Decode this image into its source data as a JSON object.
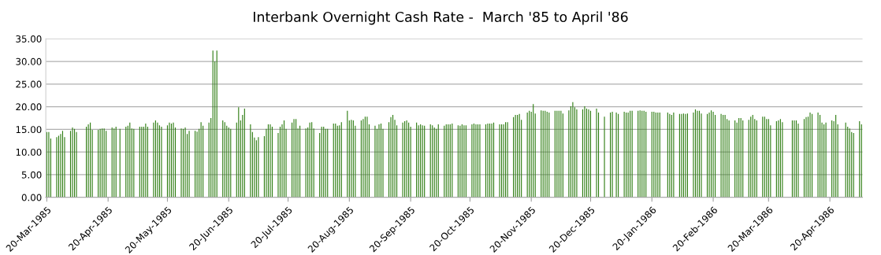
{
  "chart_data": {
    "type": "bar",
    "title": "Interbank Overnight Cash Rate -  March '85 to April '86",
    "x": [
      "1985-03-20",
      "1985-03-21",
      "1985-03-22",
      "1985-03-25",
      "1985-03-26",
      "1985-03-27",
      "1985-03-28",
      "1985-03-29",
      "1985-04-01",
      "1985-04-02",
      "1985-04-03",
      "1985-04-04",
      "1985-04-09",
      "1985-04-10",
      "1985-04-11",
      "1985-04-12",
      "1985-04-15",
      "1985-04-16",
      "1985-04-17",
      "1985-04-18",
      "1985-04-19",
      "1985-04-22",
      "1985-04-23",
      "1985-04-24",
      "1985-04-26",
      "1985-04-29",
      "1985-04-30",
      "1985-05-01",
      "1985-05-02",
      "1985-05-03",
      "1985-05-06",
      "1985-05-07",
      "1985-05-08",
      "1985-05-09",
      "1985-05-10",
      "1985-05-13",
      "1985-05-14",
      "1985-05-15",
      "1985-05-16",
      "1985-05-17",
      "1985-05-20",
      "1985-05-21",
      "1985-05-22",
      "1985-05-23",
      "1985-05-24",
      "1985-05-27",
      "1985-05-28",
      "1985-05-29",
      "1985-05-30",
      "1985-05-31",
      "1985-06-03",
      "1985-06-04",
      "1985-06-05",
      "1985-06-06",
      "1985-06-07",
      "1985-06-10",
      "1985-06-11",
      "1985-06-12",
      "1985-06-13",
      "1985-06-14",
      "1985-06-17",
      "1985-06-18",
      "1985-06-19",
      "1985-06-20",
      "1985-06-21",
      "1985-06-24",
      "1985-06-25",
      "1985-06-26",
      "1985-06-27",
      "1985-06-28",
      "1985-07-01",
      "1985-07-02",
      "1985-07-03",
      "1985-07-04",
      "1985-07-05",
      "1985-07-08",
      "1985-07-09",
      "1985-07-10",
      "1985-07-11",
      "1985-07-12",
      "1985-07-15",
      "1985-07-16",
      "1985-07-17",
      "1985-07-18",
      "1985-07-19",
      "1985-07-22",
      "1985-07-23",
      "1985-07-24",
      "1985-07-25",
      "1985-07-26",
      "1985-07-29",
      "1985-07-30",
      "1985-07-31",
      "1985-08-01",
      "1985-08-02",
      "1985-08-05",
      "1985-08-06",
      "1985-08-07",
      "1985-08-08",
      "1985-08-09",
      "1985-08-12",
      "1985-08-13",
      "1985-08-14",
      "1985-08-15",
      "1985-08-16",
      "1985-08-19",
      "1985-08-20",
      "1985-08-21",
      "1985-08-22",
      "1985-08-23",
      "1985-08-26",
      "1985-08-27",
      "1985-08-28",
      "1985-08-29",
      "1985-08-30",
      "1985-09-02",
      "1985-09-03",
      "1985-09-04",
      "1985-09-05",
      "1985-09-06",
      "1985-09-09",
      "1985-09-10",
      "1985-09-11",
      "1985-09-12",
      "1985-09-13",
      "1985-09-16",
      "1985-09-17",
      "1985-09-18",
      "1985-09-19",
      "1985-09-20",
      "1985-09-23",
      "1985-09-24",
      "1985-09-25",
      "1985-09-26",
      "1985-09-27",
      "1985-09-30",
      "1985-10-01",
      "1985-10-02",
      "1985-10-03",
      "1985-10-04",
      "1985-10-07",
      "1985-10-08",
      "1985-10-09",
      "1985-10-10",
      "1985-10-11",
      "1985-10-14",
      "1985-10-15",
      "1985-10-16",
      "1985-10-17",
      "1985-10-18",
      "1985-10-21",
      "1985-10-22",
      "1985-10-23",
      "1985-10-24",
      "1985-10-25",
      "1985-10-28",
      "1985-10-29",
      "1985-10-30",
      "1985-10-31",
      "1985-11-01",
      "1985-11-04",
      "1985-11-05",
      "1985-11-06",
      "1985-11-07",
      "1985-11-08",
      "1985-11-11",
      "1985-11-12",
      "1985-11-13",
      "1985-11-14",
      "1985-11-15",
      "1985-11-18",
      "1985-11-19",
      "1985-11-20",
      "1985-11-21",
      "1985-11-22",
      "1985-11-25",
      "1985-11-26",
      "1985-11-27",
      "1985-11-28",
      "1985-11-29",
      "1985-12-02",
      "1985-12-03",
      "1985-12-04",
      "1985-12-05",
      "1985-12-06",
      "1985-12-09",
      "1985-12-10",
      "1985-12-11",
      "1985-12-12",
      "1985-12-13",
      "1985-12-16",
      "1985-12-17",
      "1985-12-18",
      "1985-12-19",
      "1985-12-20",
      "1985-12-23",
      "1985-12-24",
      "1985-12-27",
      "1985-12-30",
      "1985-12-31",
      "1986-01-02",
      "1986-01-03",
      "1986-01-06",
      "1986-01-07",
      "1986-01-08",
      "1986-01-09",
      "1986-01-10",
      "1986-01-13",
      "1986-01-14",
      "1986-01-15",
      "1986-01-16",
      "1986-01-17",
      "1986-01-20",
      "1986-01-21",
      "1986-01-22",
      "1986-01-23",
      "1986-01-24",
      "1986-01-28",
      "1986-01-29",
      "1986-01-30",
      "1986-01-31",
      "1986-02-03",
      "1986-02-04",
      "1986-02-05",
      "1986-02-06",
      "1986-02-07",
      "1986-02-10",
      "1986-02-11",
      "1986-02-12",
      "1986-02-13",
      "1986-02-14",
      "1986-02-17",
      "1986-02-18",
      "1986-02-19",
      "1986-02-20",
      "1986-02-21",
      "1986-02-24",
      "1986-02-25",
      "1986-02-26",
      "1986-02-27",
      "1986-02-28",
      "1986-03-03",
      "1986-03-04",
      "1986-03-05",
      "1986-03-06",
      "1986-03-07",
      "1986-03-10",
      "1986-03-11",
      "1986-03-12",
      "1986-03-13",
      "1986-03-14",
      "1986-03-17",
      "1986-03-18",
      "1986-03-19",
      "1986-03-20",
      "1986-03-21",
      "1986-03-24",
      "1986-03-25",
      "1986-03-26",
      "1986-03-27",
      "1986-04-01",
      "1986-04-02",
      "1986-04-03",
      "1986-04-04",
      "1986-04-07",
      "1986-04-08",
      "1986-04-09",
      "1986-04-10",
      "1986-04-11",
      "1986-04-14",
      "1986-04-15",
      "1986-04-16",
      "1986-04-17",
      "1986-04-18",
      "1986-04-21",
      "1986-04-22",
      "1986-04-23",
      "1986-04-24",
      "1986-04-28",
      "1986-04-29",
      "1986-04-30",
      "1986-05-01",
      "1986-05-02",
      "1986-05-05",
      "1986-05-06"
    ],
    "values": [
      14.4,
      14.4,
      13.0,
      13.3,
      13.6,
      14.0,
      14.7,
      13.3,
      14.7,
      15.4,
      15.1,
      14.4,
      15.6,
      16.1,
      16.5,
      14.9,
      14.9,
      15.1,
      15.2,
      15.2,
      14.7,
      15.4,
      15.2,
      15.6,
      15.1,
      15.6,
      15.8,
      16.5,
      15.2,
      15.1,
      15.6,
      15.6,
      15.6,
      16.3,
      15.6,
      16.5,
      17.0,
      16.5,
      15.9,
      15.6,
      15.9,
      16.5,
      16.3,
      16.5,
      15.4,
      15.2,
      15.1,
      15.4,
      14.0,
      14.7,
      14.7,
      14.5,
      15.1,
      16.6,
      15.8,
      16.5,
      17.5,
      32.4,
      30.0,
      32.4,
      17.0,
      16.6,
      15.8,
      15.4,
      15.1,
      16.5,
      19.9,
      17.0,
      18.2,
      19.6,
      16.1,
      14.4,
      13.2,
      12.6,
      13.3,
      13.5,
      15.1,
      16.1,
      16.1,
      15.6,
      14.2,
      15.6,
      16.1,
      17.0,
      15.1,
      16.5,
      17.3,
      17.3,
      15.2,
      15.8,
      15.2,
      15.4,
      16.5,
      16.6,
      15.2,
      14.2,
      15.6,
      15.6,
      15.1,
      15.1,
      16.3,
      16.3,
      15.8,
      15.9,
      16.6,
      19.1,
      17.0,
      17.1,
      17.0,
      15.8,
      17.0,
      17.3,
      17.8,
      17.8,
      16.1,
      15.8,
      15.1,
      16.1,
      16.3,
      15.1,
      16.6,
      17.7,
      18.2,
      17.1,
      15.9,
      16.5,
      16.8,
      17.0,
      16.5,
      15.6,
      16.5,
      15.9,
      16.1,
      15.9,
      15.8,
      16.1,
      15.9,
      15.4,
      15.1,
      16.1,
      15.8,
      16.1,
      16.1,
      16.1,
      16.3,
      15.9,
      15.8,
      16.1,
      15.9,
      15.9,
      16.1,
      16.3,
      16.1,
      16.1,
      16.1,
      16.1,
      16.3,
      16.3,
      16.3,
      16.5,
      16.1,
      16.1,
      16.1,
      16.6,
      16.6,
      17.7,
      18.2,
      18.2,
      18.4,
      17.1,
      18.7,
      19.1,
      18.9,
      20.6,
      18.5,
      19.2,
      19.1,
      19.1,
      18.9,
      18.7,
      19.1,
      19.1,
      19.1,
      19.1,
      18.5,
      19.2,
      20.1,
      21.0,
      19.9,
      19.4,
      19.4,
      20.1,
      19.6,
      19.4,
      19.1,
      19.6,
      18.7,
      17.8,
      18.7,
      18.9,
      18.7,
      18.4,
      18.9,
      18.7,
      18.7,
      19.1,
      19.1,
      19.1,
      19.2,
      19.1,
      19.1,
      18.9,
      18.9,
      18.9,
      18.7,
      18.7,
      18.7,
      18.7,
      18.4,
      18.2,
      18.7,
      18.4,
      18.4,
      18.5,
      18.4,
      18.5,
      18.7,
      19.4,
      19.1,
      19.1,
      18.5,
      18.4,
      18.7,
      19.2,
      18.9,
      18.2,
      18.4,
      18.2,
      18.2,
      17.3,
      17.0,
      17.0,
      16.5,
      17.5,
      17.5,
      17.0,
      17.1,
      17.8,
      18.2,
      17.3,
      17.0,
      17.8,
      17.8,
      17.3,
      17.3,
      15.9,
      16.8,
      17.0,
      17.3,
      16.6,
      17.0,
      17.0,
      17.0,
      16.3,
      17.3,
      17.7,
      17.8,
      18.7,
      18.4,
      18.7,
      18.2,
      16.5,
      16.1,
      16.5,
      17.0,
      16.8,
      18.2,
      16.1,
      16.5,
      15.6,
      15.2,
      14.4,
      14.2,
      16.8,
      16.1
    ],
    "color": "#2e7d12",
    "xlim": [
      "1985-03-19T12:00",
      "1986-05-06T12:00"
    ],
    "xticks": [
      {
        "value": "1985-03-20",
        "label": "20-Mar-1985"
      },
      {
        "value": "1985-04-20",
        "label": "20-Apr-1985"
      },
      {
        "value": "1985-05-20",
        "label": "20-May-1985"
      },
      {
        "value": "1985-06-20",
        "label": "20-Jun-1985"
      },
      {
        "value": "1985-07-20",
        "label": "20-Jul-1985"
      },
      {
        "value": "1985-08-20",
        "label": "20-Aug-1985"
      },
      {
        "value": "1985-09-20",
        "label": "20-Sep-1985"
      },
      {
        "value": "1985-10-20",
        "label": "20-Oct-1985"
      },
      {
        "value": "1985-11-20",
        "label": "20-Nov-1985"
      },
      {
        "value": "1985-12-20",
        "label": "20-Dec-1985"
      },
      {
        "value": "1986-01-20",
        "label": "20-Jan-1986"
      },
      {
        "value": "1986-02-20",
        "label": "20-Feb-1986"
      },
      {
        "value": "1986-03-20",
        "label": "20-Mar-1986"
      },
      {
        "value": "1986-04-20",
        "label": "20-Apr-1986"
      }
    ],
    "ylim": [
      0,
      35
    ],
    "yticks": [
      {
        "value": 0,
        "label": "0.00"
      },
      {
        "value": 5,
        "label": "5.00"
      },
      {
        "value": 10,
        "label": "10.00"
      },
      {
        "value": 15,
        "label": "15.00"
      },
      {
        "value": 20,
        "label": "20.00"
      },
      {
        "value": 25,
        "label": "25.00"
      },
      {
        "value": 30,
        "label": "30.00"
      },
      {
        "value": 35,
        "label": "35.00"
      }
    ],
    "grid": "y"
  }
}
